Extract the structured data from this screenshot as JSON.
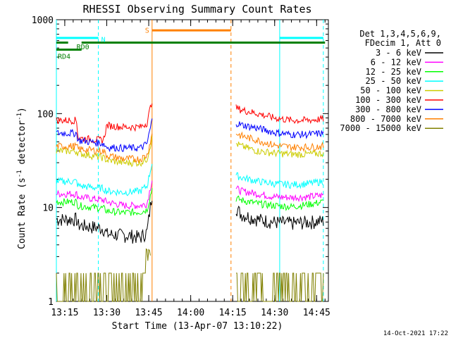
{
  "chart_data": {
    "type": "line",
    "title": "RHESSI Observing Summary Count Rates",
    "xlabel": "Start Time (13-Apr-07 13:10:22)",
    "ylabel_main": "Count Rate (s",
    "ylabel_sup1": "-1",
    "ylabel_mid": " detector",
    "ylabel_sup2": "-1",
    "ylabel_end": ")",
    "footer_date": "14-Oct-2021 17:22",
    "x_units": "minutes",
    "xlim": [
      13.2,
      14.82
    ],
    "ylim": [
      1,
      1000
    ],
    "yscale": "log",
    "xticks": [
      {
        "value": 13.25,
        "label": "13:15"
      },
      {
        "value": 13.5,
        "label": "13:30"
      },
      {
        "value": 13.75,
        "label": "13:45"
      },
      {
        "value": 14.0,
        "label": "14:00"
      },
      {
        "value": 14.25,
        "label": "14:15"
      },
      {
        "value": 14.5,
        "label": "14:30"
      },
      {
        "value": 14.75,
        "label": "14:45"
      }
    ],
    "yticks": [
      {
        "value": 1,
        "label": "1"
      },
      {
        "value": 10,
        "label": "10"
      },
      {
        "value": 100,
        "label": "100"
      },
      {
        "value": 1000,
        "label": "1000"
      }
    ],
    "legend": {
      "header": [
        "Det 1,3,4,5,6,9,",
        "FDecim 1, Att 0"
      ],
      "placement": "right"
    },
    "series": [
      {
        "name": "3 - 6 keV",
        "color": "#000000",
        "pre": [
          [
            13.2,
            7.5
          ],
          [
            13.32,
            7.5
          ],
          [
            13.33,
            6.5
          ],
          [
            13.48,
            6.0
          ],
          [
            13.5,
            5.2
          ],
          [
            13.65,
            5.0
          ],
          [
            13.7,
            4.8
          ],
          [
            13.74,
            5.5
          ],
          [
            13.77,
            14
          ]
        ],
        "post": [
          [
            14.27,
            10
          ],
          [
            14.3,
            8.5
          ],
          [
            14.4,
            7.5
          ],
          [
            14.5,
            7.0
          ],
          [
            14.6,
            6.8
          ],
          [
            14.7,
            7.0
          ],
          [
            14.79,
            7.2
          ]
        ]
      },
      {
        "name": "6 - 12 keV",
        "color": "#ff00ff",
        "pre": [
          [
            13.2,
            14
          ],
          [
            13.32,
            14
          ],
          [
            13.33,
            13
          ],
          [
            13.48,
            12
          ],
          [
            13.5,
            11.5
          ],
          [
            13.6,
            10.5
          ],
          [
            13.7,
            10.5
          ],
          [
            13.74,
            11
          ],
          [
            13.77,
            20
          ]
        ],
        "post": [
          [
            14.27,
            16
          ],
          [
            14.3,
            15
          ],
          [
            14.4,
            14
          ],
          [
            14.5,
            13
          ],
          [
            14.6,
            12.8
          ],
          [
            14.7,
            13
          ],
          [
            14.79,
            13.5
          ]
        ]
      },
      {
        "name": "12 - 25 keV",
        "color": "#00ff00",
        "pre": [
          [
            13.2,
            11.5
          ],
          [
            13.32,
            11.5
          ],
          [
            13.33,
            10.5
          ],
          [
            13.48,
            9.8
          ],
          [
            13.5,
            9.2
          ],
          [
            13.6,
            8.8
          ],
          [
            13.7,
            9.0
          ],
          [
            13.74,
            9.5
          ],
          [
            13.77,
            16
          ]
        ],
        "post": [
          [
            14.27,
            12.5
          ],
          [
            14.3,
            12
          ],
          [
            14.4,
            11
          ],
          [
            14.5,
            10.5
          ],
          [
            14.6,
            10.2
          ],
          [
            14.7,
            10.8
          ],
          [
            14.79,
            11.5
          ]
        ]
      },
      {
        "name": "25 - 50 keV",
        "color": "#00ffff",
        "pre": [
          [
            13.2,
            19
          ],
          [
            13.32,
            19
          ],
          [
            13.33,
            17
          ],
          [
            13.48,
            16
          ],
          [
            13.5,
            15
          ],
          [
            13.6,
            14.5
          ],
          [
            13.7,
            15
          ],
          [
            13.74,
            17
          ],
          [
            13.77,
            30
          ]
        ],
        "post": [
          [
            14.27,
            22
          ],
          [
            14.3,
            21
          ],
          [
            14.4,
            19
          ],
          [
            14.5,
            18
          ],
          [
            14.6,
            17.5
          ],
          [
            14.7,
            18
          ],
          [
            14.79,
            19
          ]
        ]
      },
      {
        "name": "50 - 100 keV",
        "color": "#cccc00",
        "pre": [
          [
            13.2,
            40
          ],
          [
            13.32,
            40
          ],
          [
            13.33,
            38
          ],
          [
            13.48,
            34
          ],
          [
            13.5,
            32
          ],
          [
            13.6,
            30
          ],
          [
            13.7,
            30
          ],
          [
            13.74,
            33
          ],
          [
            13.77,
            55
          ]
        ],
        "post": [
          [
            14.27,
            48
          ],
          [
            14.3,
            45
          ],
          [
            14.4,
            40
          ],
          [
            14.5,
            38
          ],
          [
            14.6,
            37
          ],
          [
            14.7,
            37
          ],
          [
            14.79,
            38
          ]
        ]
      },
      {
        "name": "100 - 300 keV",
        "color": "#ff0000",
        "pre": [
          [
            13.2,
            85
          ],
          [
            13.32,
            85
          ],
          [
            13.33,
            55
          ],
          [
            13.48,
            52
          ],
          [
            13.5,
            75
          ],
          [
            13.6,
            72
          ],
          [
            13.7,
            72
          ],
          [
            13.74,
            80
          ],
          [
            13.77,
            140
          ]
        ],
        "post": [
          [
            14.27,
            115
          ],
          [
            14.3,
            110
          ],
          [
            14.4,
            100
          ],
          [
            14.5,
            90
          ],
          [
            14.6,
            85
          ],
          [
            14.7,
            85
          ],
          [
            14.79,
            88
          ]
        ]
      },
      {
        "name": "300 - 800 keV",
        "color": "#0000ff",
        "pre": [
          [
            13.2,
            62
          ],
          [
            13.32,
            62
          ],
          [
            13.33,
            52
          ],
          [
            13.48,
            48
          ],
          [
            13.5,
            44
          ],
          [
            13.6,
            43
          ],
          [
            13.7,
            43
          ],
          [
            13.74,
            48
          ],
          [
            13.77,
            85
          ]
        ],
        "post": [
          [
            14.27,
            80
          ],
          [
            14.3,
            76
          ],
          [
            14.4,
            70
          ],
          [
            14.5,
            63
          ],
          [
            14.6,
            60
          ],
          [
            14.7,
            60
          ],
          [
            14.79,
            62
          ]
        ]
      },
      {
        "name": "800 - 7000 keV",
        "color": "#ff8000",
        "pre": [
          [
            13.2,
            45
          ],
          [
            13.32,
            45
          ],
          [
            13.33,
            42
          ],
          [
            13.48,
            40
          ],
          [
            13.5,
            36
          ],
          [
            13.6,
            33
          ],
          [
            13.7,
            33
          ],
          [
            13.74,
            36
          ],
          [
            13.77,
            60
          ]
        ],
        "post": [
          [
            14.27,
            62
          ],
          [
            14.3,
            58
          ],
          [
            14.4,
            52
          ],
          [
            14.5,
            46
          ],
          [
            14.6,
            44
          ],
          [
            14.7,
            44
          ],
          [
            14.79,
            45
          ]
        ]
      },
      {
        "name": "7000 - 15000 keV",
        "color": "#808000",
        "pre": [
          [
            13.2,
            1.6
          ],
          [
            13.74,
            1.6
          ],
          [
            13.76,
            4.0
          ]
        ],
        "post": [
          [
            14.27,
            1.6
          ],
          [
            14.79,
            1.6
          ]
        ]
      }
    ],
    "annotations": [
      {
        "label": "RD0",
        "color": "#008000",
        "x": [
          13.32,
          13.35
        ],
        "level": 520
      },
      {
        "label": "RD4",
        "color": "#008000",
        "x": [
          13.2,
          13.35
        ],
        "level": 480
      },
      {
        "label": "N",
        "color": "#00ffff",
        "x": [
          13.2,
          13.45
        ],
        "level": 620
      },
      {
        "label": "S",
        "color": "#ff8000",
        "x": [
          13.77,
          14.24
        ],
        "level": 780
      }
    ],
    "segments": [
      {
        "name": "rd4-bar",
        "color": "#008000",
        "x": [
          13.2,
          13.35
        ],
        "level": 480
      },
      {
        "name": "rd0-bar",
        "color": "#008000",
        "x": [
          13.35,
          14.8
        ],
        "level": 570
      },
      {
        "name": "rd0-small-bar",
        "color": "#008000",
        "x": [
          13.2,
          13.27
        ],
        "level": 570
      },
      {
        "name": "n-bar-left",
        "color": "#00ffff",
        "x": [
          13.2,
          13.45
        ],
        "level": 640
      },
      {
        "name": "n-bar-right",
        "color": "#00ffff",
        "x": [
          14.53,
          14.79
        ],
        "level": 640
      },
      {
        "name": "s-bar",
        "color": "#ff8000",
        "x": [
          13.77,
          14.24
        ],
        "level": 770
      }
    ],
    "vlines": [
      {
        "name": "cyan-solid-1",
        "x": 13.2,
        "color": "#00ffff",
        "dash": false
      },
      {
        "name": "cyan-dashed-1",
        "x": 13.45,
        "color": "#00ffff",
        "dash": true
      },
      {
        "name": "orange-solid",
        "x": 13.77,
        "color": "#ff8000",
        "dash": false
      },
      {
        "name": "orange-dashed",
        "x": 14.24,
        "color": "#ff8000",
        "dash": true
      },
      {
        "name": "cyan-solid-2",
        "x": 14.53,
        "color": "#00ffff",
        "dash": false
      },
      {
        "name": "cyan-dashed-2",
        "x": 14.79,
        "color": "#00ffff",
        "dash": true
      }
    ]
  }
}
